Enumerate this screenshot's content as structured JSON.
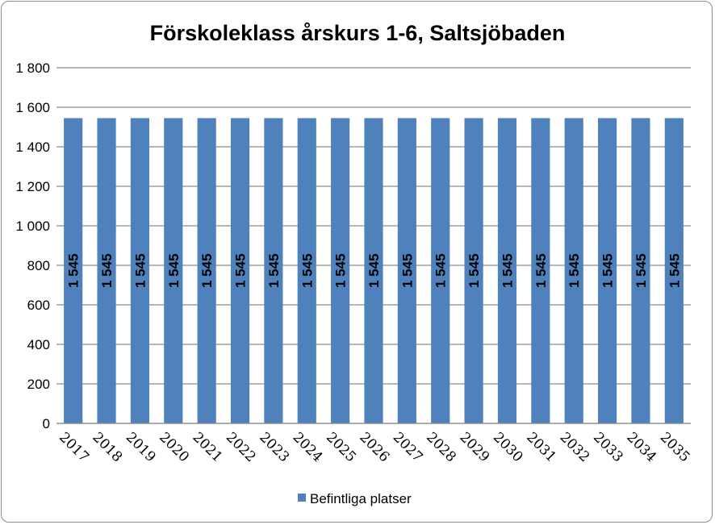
{
  "chart_data": {
    "type": "bar",
    "title": "Förskoleklass årskurs 1-6, Saltsjöbaden",
    "xlabel": "",
    "ylabel": "",
    "categories": [
      "2017",
      "2018",
      "2019",
      "2020",
      "2021",
      "2022",
      "2023",
      "2024",
      "2025",
      "2026",
      "2027",
      "2028",
      "2029",
      "2030",
      "2031",
      "2032",
      "2033",
      "2034",
      "2035"
    ],
    "series": [
      {
        "name": "Befintliga platser",
        "values": [
          1545,
          1545,
          1545,
          1545,
          1545,
          1545,
          1545,
          1545,
          1545,
          1545,
          1545,
          1545,
          1545,
          1545,
          1545,
          1545,
          1545,
          1545,
          1545
        ],
        "data_labels": [
          "1 545",
          "1 545",
          "1 545",
          "1 545",
          "1 545",
          "1 545",
          "1 545",
          "1 545",
          "1 545",
          "1 545",
          "1 545",
          "1 545",
          "1 545",
          "1 545",
          "1 545",
          "1 545",
          "1 545",
          "1 545",
          "1 545"
        ],
        "color": "#4f81bd"
      }
    ],
    "ylim": [
      0,
      1800
    ],
    "yticks": [
      0,
      200,
      400,
      600,
      800,
      1000,
      1200,
      1400,
      1600,
      1800
    ],
    "ytick_labels": [
      "0",
      "200",
      "400",
      "600",
      "800",
      "1 000",
      "1 200",
      "1 400",
      "1 600",
      "1 800"
    ],
    "grid": true,
    "legend_position": "bottom",
    "gridline_color": "#8c8c8c"
  }
}
